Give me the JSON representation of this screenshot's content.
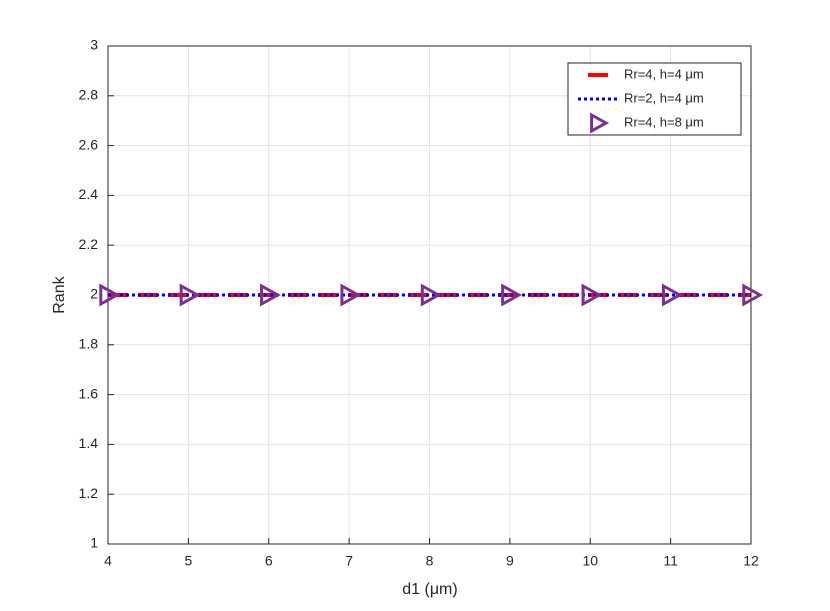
{
  "chart_data": {
    "type": "line",
    "x": [
      4,
      5,
      6,
      7,
      8,
      9,
      10,
      11,
      12
    ],
    "series": [
      {
        "name": "Rr=4, h=4 μm",
        "color": "#ff0000",
        "dash": "dashed",
        "marker": "none",
        "values": [
          2,
          2,
          2,
          2,
          2,
          2,
          2,
          2,
          2
        ]
      },
      {
        "name": "Rr=2, h=4 μm",
        "color": "#0000ff",
        "dash": "dotted",
        "marker": "none",
        "values": [
          2,
          2,
          2,
          2,
          2,
          2,
          2,
          2,
          2
        ]
      },
      {
        "name": "Rr=4, h=8 μm",
        "color": "#7e2f8e",
        "dash": "none",
        "marker": "triangle-right",
        "values": [
          2,
          2,
          2,
          2,
          2,
          2,
          2,
          2,
          2
        ]
      }
    ],
    "xlabel": "d1 (μm)",
    "ylabel": "Rank",
    "xlim": [
      4,
      12
    ],
    "xticks": [
      4,
      5,
      6,
      7,
      8,
      9,
      10,
      11,
      12
    ],
    "ylim": [
      1,
      3
    ],
    "yticks": [
      1,
      1.2,
      1.4,
      1.6,
      1.8,
      2,
      2.2,
      2.4,
      2.6,
      2.8,
      3
    ],
    "grid": true,
    "legend": "northeast"
  }
}
